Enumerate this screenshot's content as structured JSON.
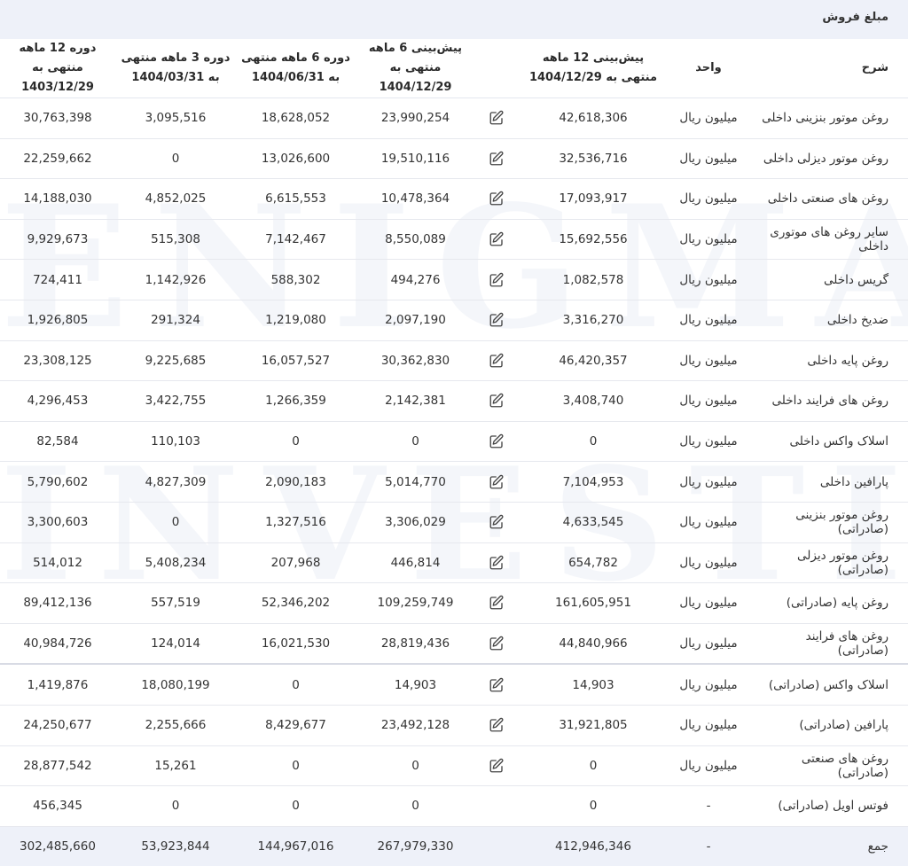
{
  "title": "مبلغ فروش",
  "watermark": {
    "line1": "ENIGMA",
    "line2": "INVESTING"
  },
  "headers": {
    "desc": "شرح",
    "unit": "واحد",
    "f12": "پیش‌بینی 12 ماهه منتهی به 1404/12/29",
    "f6": "پیش‌بینی 6 ماهه منتهی به 1404/12/29",
    "p6": "دوره 6 ماهه منتهی به 1404/06/31",
    "p3": "دوره 3 ماهه منتهی به 1404/03/31",
    "p12": "دوره 12 ماهه منتهی به 1403/12/29"
  },
  "rows": [
    {
      "desc": "روغن موتور بنزینی داخلی",
      "unit": "میلیون ریال",
      "f12": "42,618,306",
      "f6": "23,990,254",
      "p6": "18,628,052",
      "p3": "3,095,516",
      "p12": "30,763,398",
      "edit": true
    },
    {
      "desc": "روغن موتور دیزلی داخلی",
      "unit": "میلیون ریال",
      "f12": "32,536,716",
      "f6": "19,510,116",
      "p6": "13,026,600",
      "p3": "0",
      "p12": "22,259,662",
      "edit": true
    },
    {
      "desc": "روغن های صنعتی داخلی",
      "unit": "میلیون ریال",
      "f12": "17,093,917",
      "f6": "10,478,364",
      "p6": "6,615,553",
      "p3": "4,852,025",
      "p12": "14,188,030",
      "edit": true
    },
    {
      "desc": "سایر روغن های موتوری داخلی",
      "unit": "میلیون ریال",
      "f12": "15,692,556",
      "f6": "8,550,089",
      "p6": "7,142,467",
      "p3": "515,308",
      "p12": "9,929,673",
      "edit": true
    },
    {
      "desc": "گریس داخلی",
      "unit": "میلیون ریال",
      "f12": "1,082,578",
      "f6": "494,276",
      "p6": "588,302",
      "p3": "1,142,926",
      "p12": "724,411",
      "edit": true
    },
    {
      "desc": "ضدیخ داخلی",
      "unit": "میلیون ریال",
      "f12": "3,316,270",
      "f6": "2,097,190",
      "p6": "1,219,080",
      "p3": "291,324",
      "p12": "1,926,805",
      "edit": true
    },
    {
      "desc": "روغن پایه داخلی",
      "unit": "میلیون ریال",
      "f12": "46,420,357",
      "f6": "30,362,830",
      "p6": "16,057,527",
      "p3": "9,225,685",
      "p12": "23,308,125",
      "edit": true
    },
    {
      "desc": "روغن های فرایند داخلی",
      "unit": "میلیون ریال",
      "f12": "3,408,740",
      "f6": "2,142,381",
      "p6": "1,266,359",
      "p3": "3,422,755",
      "p12": "4,296,453",
      "edit": true
    },
    {
      "desc": "اسلاک واکس داخلی",
      "unit": "میلیون ریال",
      "f12": "0",
      "f6": "0",
      "p6": "0",
      "p3": "110,103",
      "p12": "82,584",
      "edit": true
    },
    {
      "desc": "پارافین داخلی",
      "unit": "میلیون ریال",
      "f12": "7,104,953",
      "f6": "5,014,770",
      "p6": "2,090,183",
      "p3": "4,827,309",
      "p12": "5,790,602",
      "edit": true
    },
    {
      "desc": "روغن موتور بنزینی (صادراتی)",
      "unit": "میلیون ریال",
      "f12": "4,633,545",
      "f6": "3,306,029",
      "p6": "1,327,516",
      "p3": "0",
      "p12": "3,300,603",
      "edit": true
    },
    {
      "desc": "روغن موتور دیزلی (صادراتی)",
      "unit": "میلیون ریال",
      "f12": "654,782",
      "f6": "446,814",
      "p6": "207,968",
      "p3": "5,408,234",
      "p12": "514,012",
      "edit": true
    },
    {
      "desc": "روغن پایه (صادراتی)",
      "unit": "میلیون ریال",
      "f12": "161,605,951",
      "f6": "109,259,749",
      "p6": "52,346,202",
      "p3": "557,519",
      "p12": "89,412,136",
      "edit": true
    },
    {
      "desc": "روغن های فرایند (صادراتی)",
      "unit": "میلیون ریال",
      "f12": "44,840,966",
      "f6": "28,819,436",
      "p6": "16,021,530",
      "p3": "124,014",
      "p12": "40,984,726",
      "edit": true,
      "sep": true
    },
    {
      "desc": "اسلاک واکس (صادراتی)",
      "unit": "میلیون ریال",
      "f12": "14,903",
      "f6": "14,903",
      "p6": "0",
      "p3": "18,080,199",
      "p12": "1,419,876",
      "edit": true
    },
    {
      "desc": "پارافین (صادراتی)",
      "unit": "میلیون ریال",
      "f12": "31,921,805",
      "f6": "23,492,128",
      "p6": "8,429,677",
      "p3": "2,255,666",
      "p12": "24,250,677",
      "edit": true
    },
    {
      "desc": "روغن های صنعتی (صادراتی)",
      "unit": "میلیون ریال",
      "f12": "0",
      "f6": "0",
      "p6": "0",
      "p3": "15,261",
      "p12": "28,877,542",
      "edit": true
    },
    {
      "desc": "فوتس اویل (صادراتی)",
      "unit": "-",
      "f12": "0",
      "f6": "0",
      "p6": "0",
      "p3": "0",
      "p12": "456,345",
      "edit": false
    }
  ],
  "total": {
    "desc": "جمع",
    "unit": "-",
    "f12": "412,946,346",
    "f6": "267,979,330",
    "p6": "144,967,016",
    "p3": "53,923,844",
    "p12": "302,485,660"
  }
}
